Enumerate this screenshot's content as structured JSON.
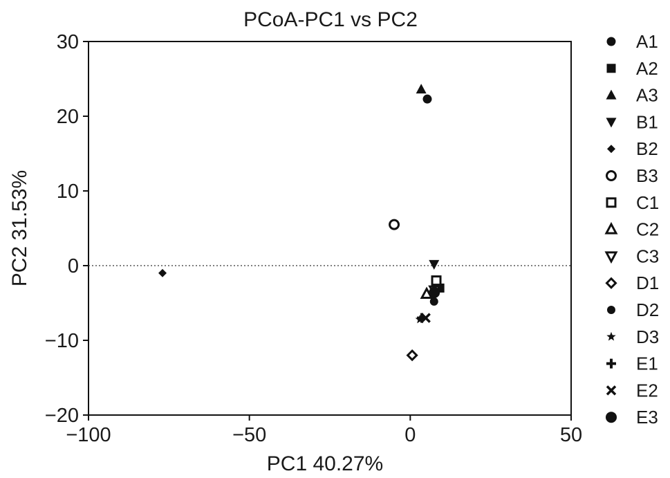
{
  "chart_data": {
    "type": "scatter",
    "title": "PCoA-PC1 vs PC2",
    "xlabel": "PC1 40.27%",
    "ylabel": "PC2 31.53%",
    "xlim": [
      -100,
      50
    ],
    "ylim": [
      -20,
      30
    ],
    "xticks": [
      -100,
      -50,
      0,
      50
    ],
    "xtick_labels": [
      "−100",
      "−50",
      "0",
      "50"
    ],
    "yticks": [
      -20,
      -10,
      0,
      10,
      20,
      30
    ],
    "ytick_labels": [
      "−20",
      "−10",
      "0",
      "10",
      "20",
      "30"
    ],
    "reference_line": {
      "y": 0,
      "style": "dotted"
    },
    "grid": false,
    "legend_position": "right",
    "series": [
      {
        "name": "A1",
        "marker": "filled-circle",
        "x": 5.3,
        "y": 22.3
      },
      {
        "name": "A2",
        "marker": "filled-square",
        "x": 9.2,
        "y": -3.0
      },
      {
        "name": "A3",
        "marker": "filled-triangle-up",
        "x": 3.4,
        "y": 23.6
      },
      {
        "name": "B1",
        "marker": "filled-triangle-down",
        "x": 7.4,
        "y": 0.2
      },
      {
        "name": "B2",
        "marker": "filled-diamond",
        "x": -77.0,
        "y": -1.0
      },
      {
        "name": "B3",
        "marker": "open-circle",
        "x": -5.0,
        "y": 5.5
      },
      {
        "name": "C1",
        "marker": "open-square",
        "x": 8.1,
        "y": -2.0
      },
      {
        "name": "C2",
        "marker": "open-triangle-up",
        "x": 5.1,
        "y": -3.8
      },
      {
        "name": "C3",
        "marker": "open-triangle-down",
        "x": 7.6,
        "y": -3.3
      },
      {
        "name": "D1",
        "marker": "open-diamond",
        "x": 0.6,
        "y": -12.0
      },
      {
        "name": "D2",
        "marker": "filled-circle-small",
        "x": 7.4,
        "y": -4.8
      },
      {
        "name": "D3",
        "marker": "star",
        "x": 3.0,
        "y": -7.2
      },
      {
        "name": "E1",
        "marker": "plus",
        "x": 3.6,
        "y": -7.0
      },
      {
        "name": "E2",
        "marker": "cross",
        "x": 4.8,
        "y": -7.0
      },
      {
        "name": "E3",
        "marker": "filled-circle-large",
        "x": 7.5,
        "y": -3.6
      }
    ]
  }
}
